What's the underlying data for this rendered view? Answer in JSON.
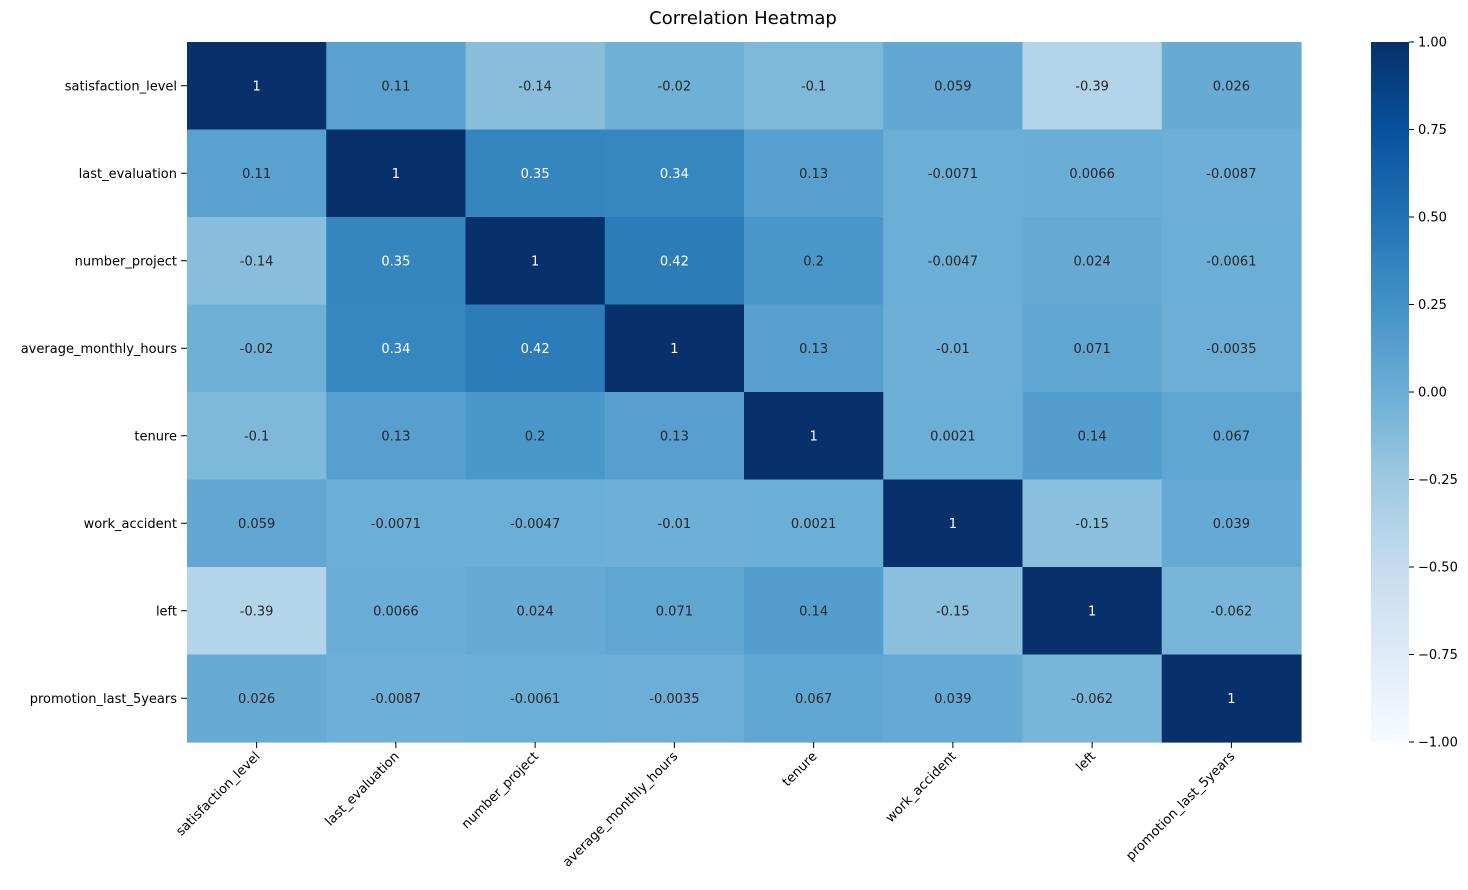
{
  "chart_data": {
    "type": "heatmap",
    "title": "Correlation Heatmap",
    "xlabel": "",
    "ylabel": "",
    "row_labels": [
      "satisfaction_level",
      "last_evaluation",
      "number_project",
      "average_monthly_hours",
      "tenure",
      "work_accident",
      "left",
      "promotion_last_5years"
    ],
    "col_labels": [
      "satisfaction_level",
      "last_evaluation",
      "number_project",
      "average_monthly_hours",
      "tenure",
      "work_accident",
      "left",
      "promotion_last_5years"
    ],
    "values": [
      [
        1,
        0.11,
        -0.14,
        -0.02,
        -0.1,
        0.059,
        -0.39,
        0.026
      ],
      [
        0.11,
        1,
        0.35,
        0.34,
        0.13,
        -0.0071,
        0.0066,
        -0.0087
      ],
      [
        -0.14,
        0.35,
        1,
        0.42,
        0.2,
        -0.0047,
        0.024,
        -0.0061
      ],
      [
        -0.02,
        0.34,
        0.42,
        1,
        0.13,
        -0.01,
        0.071,
        -0.0035
      ],
      [
        -0.1,
        0.13,
        0.2,
        0.13,
        1,
        0.0021,
        0.14,
        0.067
      ],
      [
        0.059,
        -0.0071,
        -0.0047,
        -0.01,
        0.0021,
        1,
        -0.15,
        0.039
      ],
      [
        -0.39,
        0.0066,
        0.024,
        0.071,
        0.14,
        -0.15,
        1,
        -0.062
      ],
      [
        0.026,
        -0.0087,
        -0.0061,
        -0.0035,
        0.067,
        0.039,
        -0.062,
        1
      ]
    ],
    "value_labels": [
      [
        "1",
        "0.11",
        "-0.14",
        "-0.02",
        "-0.1",
        "0.059",
        "-0.39",
        "0.026"
      ],
      [
        "0.11",
        "1",
        "0.35",
        "0.34",
        "0.13",
        "-0.0071",
        "0.0066",
        "-0.0087"
      ],
      [
        "-0.14",
        "0.35",
        "1",
        "0.42",
        "0.2",
        "-0.0047",
        "0.024",
        "-0.0061"
      ],
      [
        "-0.02",
        "0.34",
        "0.42",
        "1",
        "0.13",
        "-0.01",
        "0.071",
        "-0.0035"
      ],
      [
        "-0.1",
        "0.13",
        "0.2",
        "0.13",
        "1",
        "0.0021",
        "0.14",
        "0.067"
      ],
      [
        "0.059",
        "-0.0071",
        "-0.0047",
        "-0.01",
        "0.0021",
        "1",
        "-0.15",
        "0.039"
      ],
      [
        "-0.39",
        "0.0066",
        "0.024",
        "0.071",
        "0.14",
        "-0.15",
        "1",
        "-0.062"
      ],
      [
        "0.026",
        "-0.0087",
        "-0.0061",
        "-0.0035",
        "0.067",
        "0.039",
        "-0.062",
        "1"
      ]
    ],
    "colormap": "Blues",
    "vmin": -1,
    "vmax": 1,
    "colorbar_ticks": [
      1.0,
      0.75,
      0.5,
      0.25,
      0.0,
      -0.25,
      -0.5,
      -0.75,
      -1.0
    ],
    "colorbar_tick_labels": [
      "1.00",
      "0.75",
      "0.50",
      "0.25",
      "0.00",
      "−0.25",
      "−0.50",
      "−0.75",
      "−1.00"
    ],
    "annotations": true,
    "grid": false,
    "legend": "colorbar-right"
  }
}
